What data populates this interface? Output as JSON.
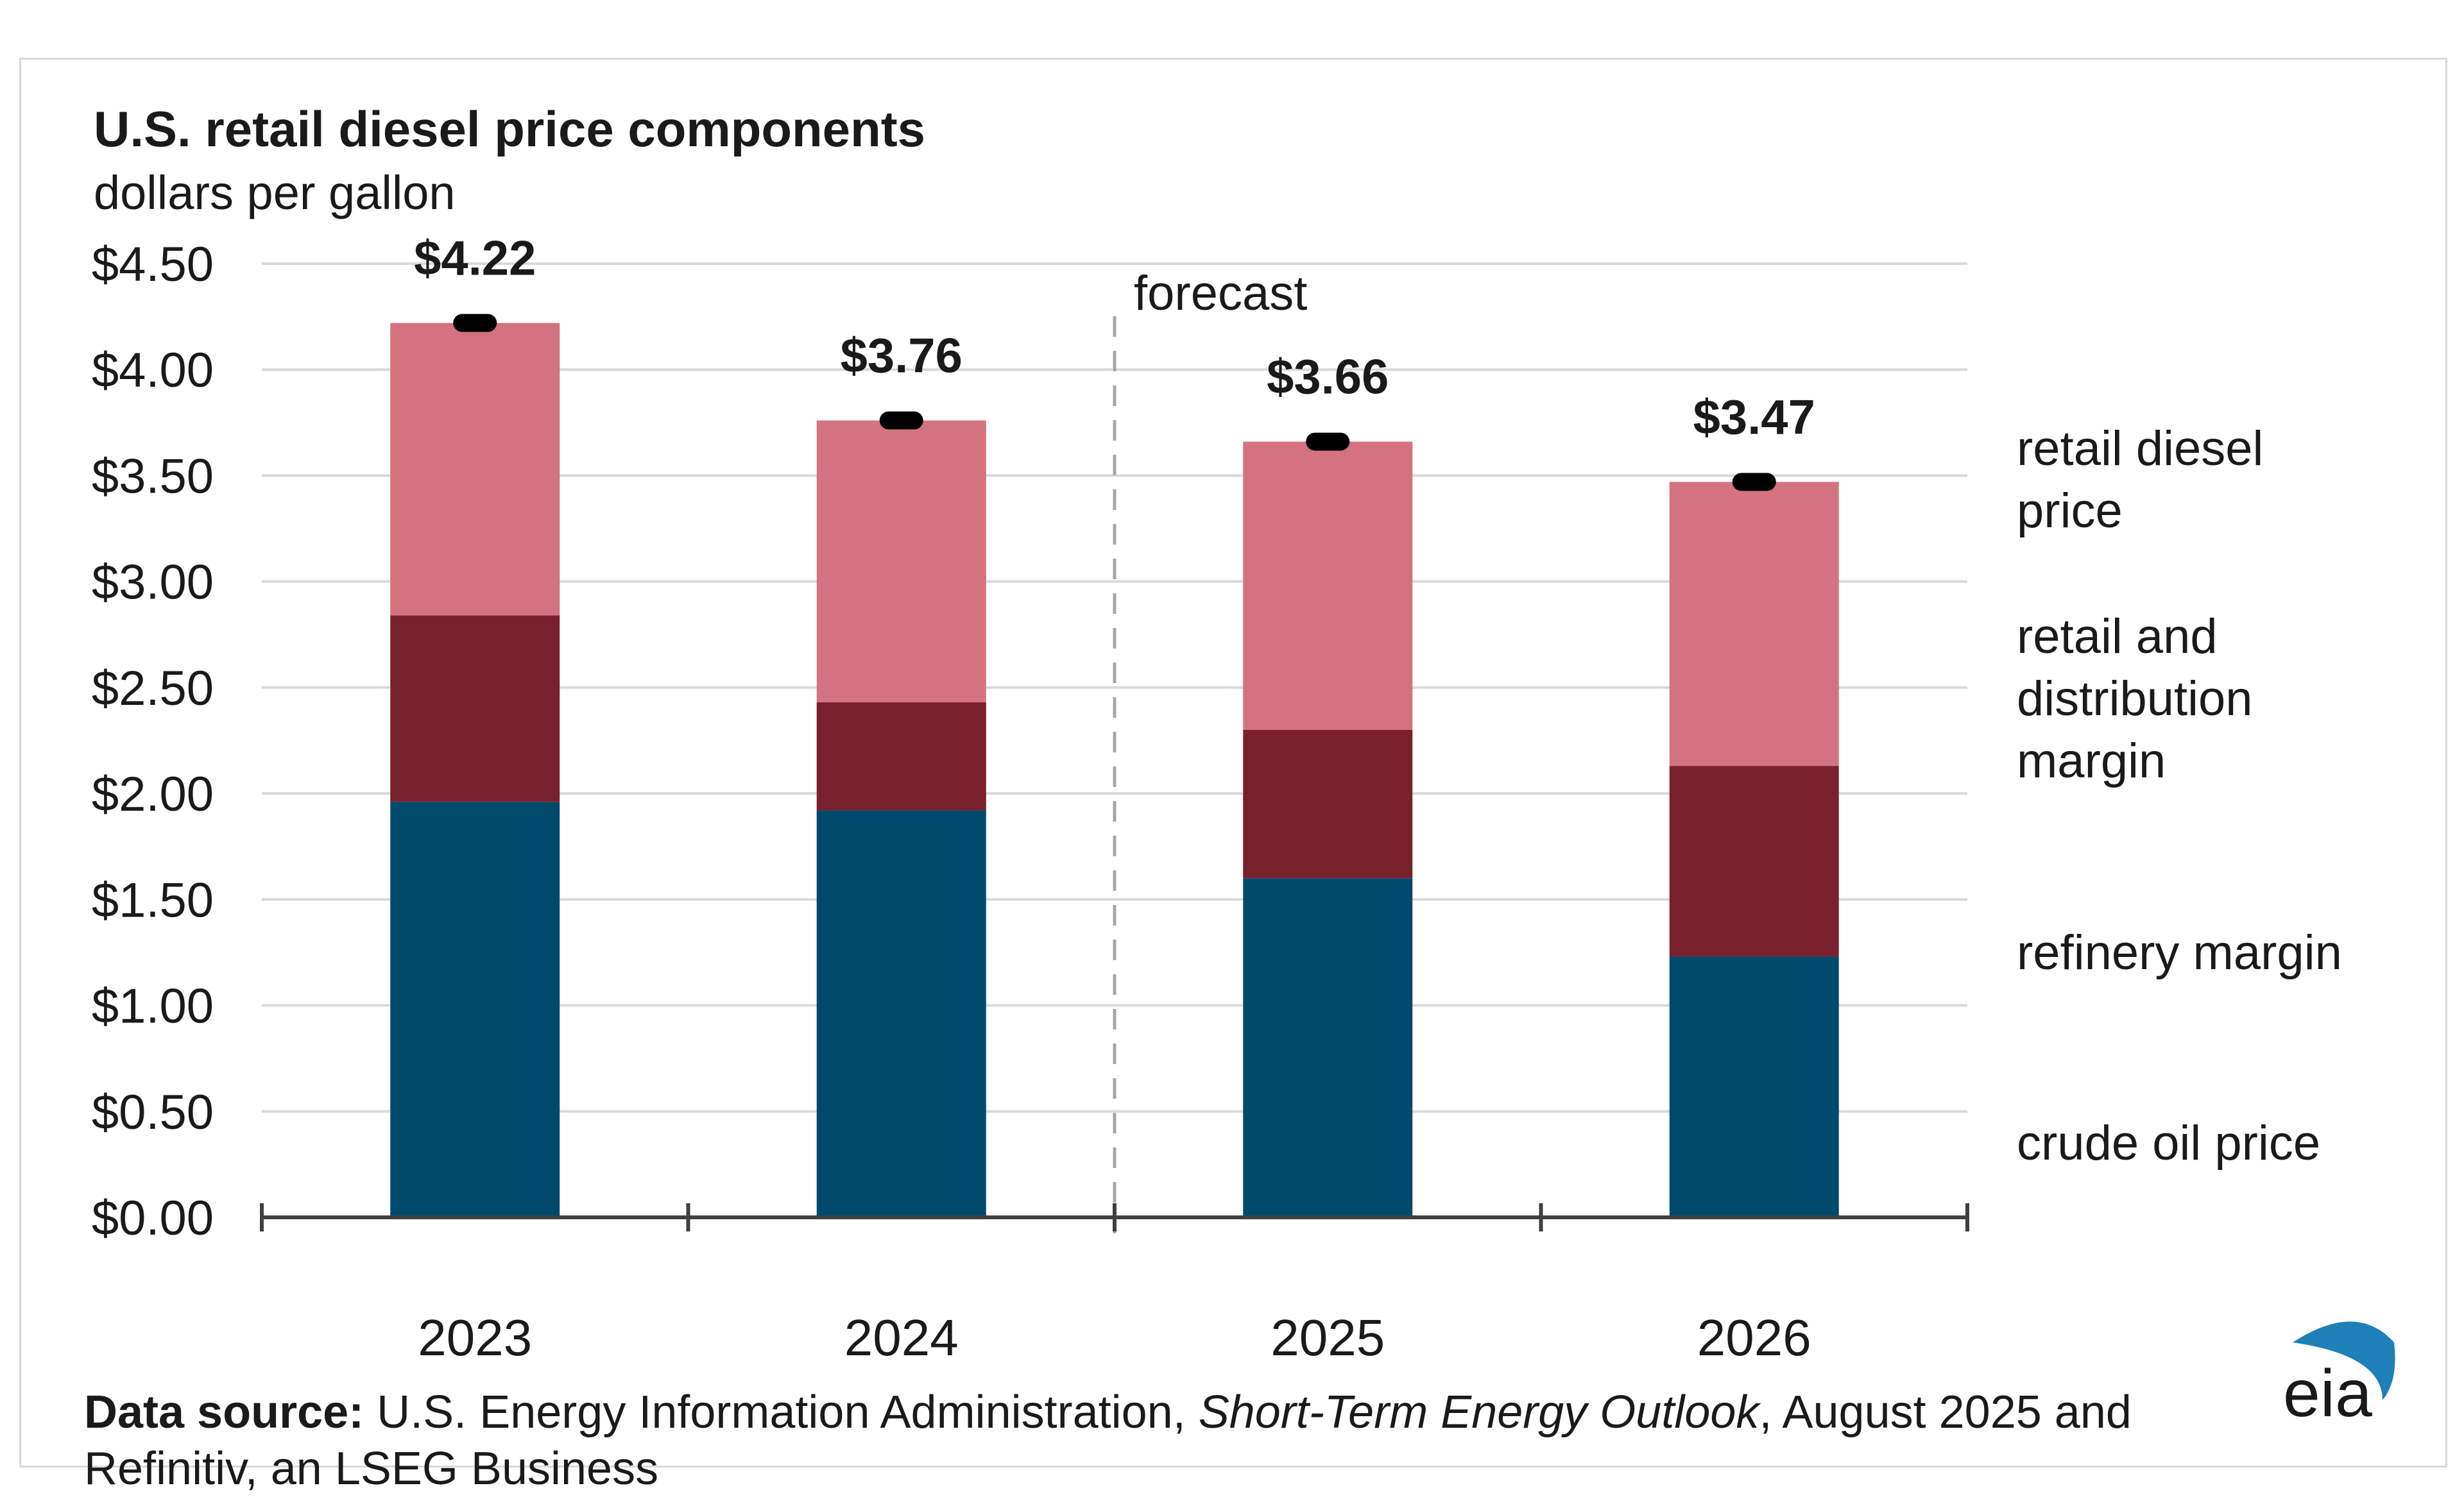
{
  "chart_data": {
    "type": "bar",
    "stacked": true,
    "title": "U.S. retail diesel price components",
    "ylabel": "dollars per gallon",
    "categories": [
      "2023",
      "2024",
      "2025",
      "2026"
    ],
    "ylim": [
      0,
      4.5
    ],
    "yticks": [
      0,
      0.5,
      1.0,
      1.5,
      2.0,
      2.5,
      3.0,
      3.5,
      4.0,
      4.5
    ],
    "ytick_labels": [
      "$0.00",
      "$0.50",
      "$1.00",
      "$1.50",
      "$2.00",
      "$2.50",
      "$3.00",
      "$3.50",
      "$4.00",
      "$4.50"
    ],
    "series": [
      {
        "name": "crude oil price",
        "color": "#004a6e",
        "values": [
          1.96,
          1.92,
          1.6,
          1.23
        ]
      },
      {
        "name": "refinery margin",
        "color": "#78212d",
        "values": [
          0.88,
          0.51,
          0.7,
          0.9
        ]
      },
      {
        "name": "retail and distribution margin",
        "color": "#d4737f",
        "values": [
          1.38,
          1.33,
          1.36,
          1.34
        ]
      }
    ],
    "totals": {
      "name": "retail diesel price",
      "values": [
        4.22,
        3.76,
        3.66,
        3.47
      ],
      "labels": [
        "$4.22",
        "$3.76",
        "$3.66",
        "$3.47"
      ],
      "color": "#000000"
    },
    "forecast_label": "forecast",
    "forecast_start_after": "2024",
    "legend": [
      {
        "lines": [
          "retail diesel",
          "price"
        ],
        "color": "#1a1a1a"
      },
      {
        "lines": [
          "retail and",
          "distribution",
          "margin"
        ],
        "color": "#d4737f"
      },
      {
        "lines": [
          "refinery margin"
        ],
        "color": "#78212d"
      },
      {
        "lines": [
          "crude oil price"
        ],
        "color": "#004a6e"
      }
    ],
    "grid": true,
    "gridline_color": "#d9d9d9",
    "axis_color": "#404040"
  },
  "footer": {
    "source_label": "Data source:",
    "source_text_1": " U.S. Energy Information Administration, ",
    "source_italic": "Short-Term Energy Outlook",
    "source_text_2": ", August 2025 and Refinitiv, an LSEG Business",
    "logo_text": "eia",
    "logo_color": "#1f7fb8"
  }
}
